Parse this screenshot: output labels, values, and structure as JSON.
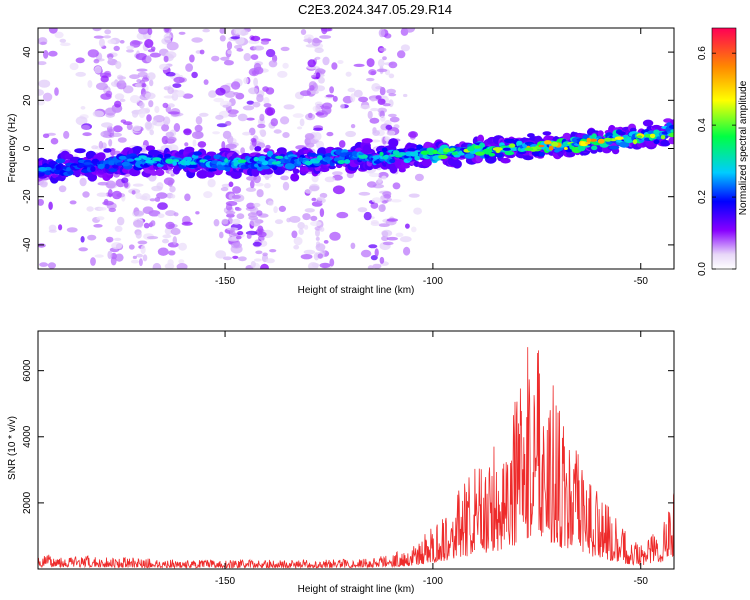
{
  "figure": {
    "title": "C2E3.2024.347.05.29.R14"
  },
  "chart_data": [
    {
      "type": "heatmap",
      "xlabel": "Height of straight line (km)",
      "ylabel": "Frequency (Hz)",
      "xlim": [
        -195,
        -42
      ],
      "ylim": [
        -50,
        50
      ],
      "xticks": [
        "-150",
        "-100",
        "-50"
      ],
      "yticks": [
        "-40",
        "-20",
        "0",
        "20",
        "40"
      ],
      "colorbar": {
        "label": "Normalized spectral amplitude",
        "range": [
          0,
          0.67
        ],
        "ticks": [
          "0.0",
          "0.2",
          "0.4",
          "0.6"
        ]
      },
      "ridge": {
        "description_points_x": [
          -195,
          -170,
          -150,
          -130,
          -110,
          -90,
          -70,
          -50,
          -42
        ],
        "center_frequency_hz": [
          -9,
          -5,
          -6,
          -5,
          -3,
          -1,
          1,
          5,
          7
        ],
        "peak_amplitude": [
          0.25,
          0.3,
          0.35,
          0.3,
          0.35,
          0.45,
          0.62,
          0.5,
          0.4
        ]
      }
    },
    {
      "type": "line",
      "xlabel": "Height of straight line (km)",
      "ylabel": "SNR (10 * v/v)",
      "xlim": [
        -195,
        -42
      ],
      "ylim": [
        0,
        7200
      ],
      "xticks": [
        "-150",
        "-100",
        "-50"
      ],
      "yticks": [
        "2000",
        "4000",
        "6000"
      ],
      "series": [
        {
          "color": "#ee2a2a",
          "envelope_x": [
            -195,
            -180,
            -160,
            -145,
            -130,
            -115,
            -105,
            -100,
            -95,
            -90,
            -85,
            -80,
            -77,
            -75,
            -72,
            -68,
            -60,
            -55,
            -50,
            -45,
            -42
          ],
          "envelope_y": [
            400,
            350,
            250,
            250,
            250,
            300,
            600,
            1200,
            2000,
            2800,
            3500,
            4800,
            6200,
            7200,
            5500,
            3800,
            2200,
            1200,
            700,
            1300,
            2600
          ]
        }
      ]
    }
  ]
}
